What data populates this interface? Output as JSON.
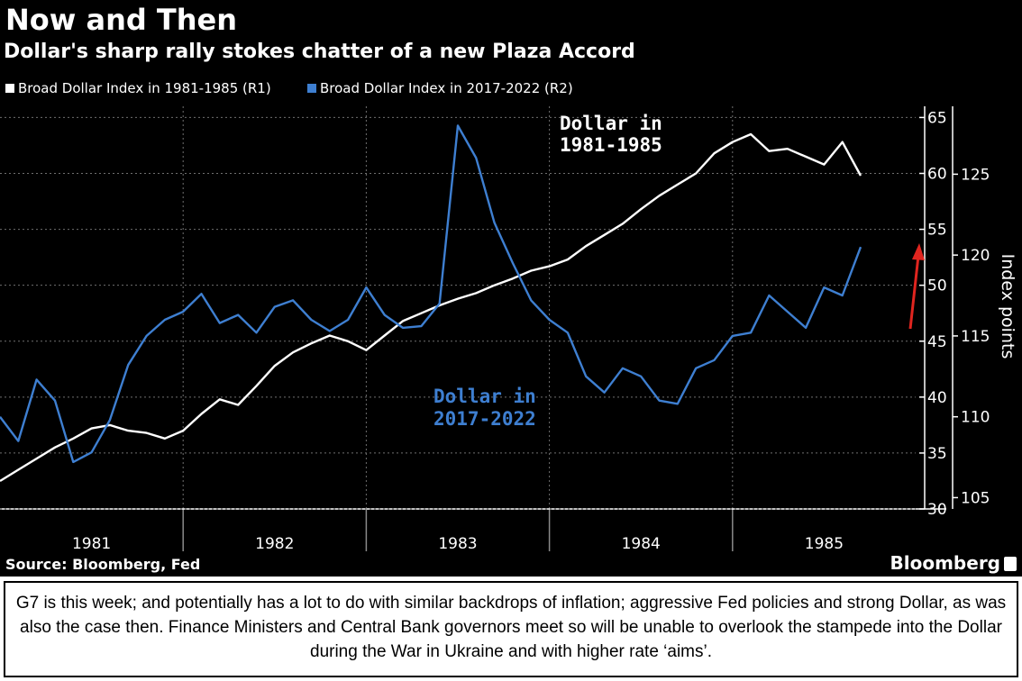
{
  "header": {
    "title": "Now and Then",
    "subtitle": "Dollar's sharp rally stokes chatter of a new Plaza Accord"
  },
  "footer": {
    "source": "Source: Bloomberg, Fed",
    "logo": "Bloomberg"
  },
  "caption": {
    "text": "G7 is this week; and potentially has a lot to do with similar backdrops of inflation; aggressive Fed policies and strong Dollar, as was also the case then. Finance Ministers and Central Bank governors meet so will be unable to overlook the stampede into the Dollar during the War in Ukraine and with higher rate ‘aims’."
  },
  "colors": {
    "background": "#000000",
    "white_series": "#ffffff",
    "blue_series": "#3e7fd1",
    "arrow": "#e0251f",
    "grid": "#6f6f6f"
  },
  "chart_data": {
    "type": "line",
    "title": "Now and Then",
    "subtitle": "Dollar's sharp rally stokes chatter of a new Plaza Accord",
    "legend": [
      {
        "name": "Broad Dollar Index in 1981-1985 (R1)",
        "color": "#ffffff"
      },
      {
        "name": "Broad Dollar Index in 2017-2022 (R2)",
        "color": "#3e7fd1"
      }
    ],
    "legend_position": "top-left",
    "x_categories": [
      "1981",
      "1982",
      "1983",
      "1984",
      "1985"
    ],
    "x_range": [
      1981.0,
      1986.0
    ],
    "ylabel": "Index points",
    "y1": {
      "name": "R1",
      "range": [
        30,
        66
      ],
      "ticks": [
        30,
        35,
        40,
        45,
        50,
        55,
        60,
        65
      ]
    },
    "y2": {
      "name": "R2",
      "range": [
        104.3,
        129.2
      ],
      "ticks": [
        105,
        110,
        115,
        120,
        125
      ]
    },
    "grid": true,
    "series": [
      {
        "name": "Broad Dollar Index in 1981-1985 (R1)",
        "axis": "R1",
        "color": "#ffffff",
        "x": [
          1981.0,
          1981.1,
          1981.2,
          1981.3,
          1981.4,
          1981.5,
          1981.6,
          1981.7,
          1981.8,
          1981.9,
          1982.0,
          1982.1,
          1982.2,
          1982.3,
          1982.4,
          1982.5,
          1982.6,
          1982.7,
          1982.8,
          1982.9,
          1983.0,
          1983.1,
          1983.2,
          1983.3,
          1983.4,
          1983.5,
          1983.6,
          1983.7,
          1983.8,
          1983.9,
          1984.0,
          1984.1,
          1984.2,
          1984.3,
          1984.4,
          1984.5,
          1984.6,
          1984.7,
          1984.8,
          1984.9,
          1985.0,
          1985.1,
          1985.2,
          1985.3,
          1985.4,
          1985.5,
          1985.6,
          1985.7
        ],
        "values": [
          32.5,
          33.5,
          34.5,
          35.5,
          36.3,
          37.2,
          37.5,
          37.0,
          36.8,
          36.3,
          37.0,
          38.5,
          39.8,
          39.3,
          41.0,
          42.8,
          44.0,
          44.8,
          45.5,
          45.0,
          44.2,
          45.5,
          46.8,
          47.5,
          48.2,
          48.8,
          49.3,
          50.0,
          50.6,
          51.3,
          51.7,
          52.3,
          53.5,
          54.5,
          55.5,
          56.8,
          58.0,
          59.0,
          60.0,
          61.8,
          62.8,
          63.5,
          62.0,
          62.2,
          61.5,
          60.8,
          62.8,
          59.8
        ]
      },
      {
        "name": "Broad Dollar Index in 2017-2022 (R2)",
        "axis": "R2",
        "color": "#3e7fd1",
        "x": [
          1981.0,
          1981.1,
          1981.2,
          1981.3,
          1981.4,
          1981.5,
          1981.6,
          1981.7,
          1981.8,
          1981.9,
          1982.0,
          1982.1,
          1982.2,
          1982.3,
          1982.4,
          1982.5,
          1982.6,
          1982.7,
          1982.8,
          1982.9,
          1983.0,
          1983.1,
          1983.2,
          1983.3,
          1983.4,
          1983.5,
          1983.6,
          1983.7,
          1983.8,
          1983.9,
          1984.0,
          1984.1,
          1984.2,
          1984.3,
          1984.4,
          1984.5,
          1984.6,
          1984.7,
          1984.8,
          1984.9,
          1985.0,
          1985.1,
          1985.2,
          1985.3,
          1985.4,
          1985.5,
          1985.6,
          1985.7
        ],
        "values": [
          110.0,
          108.5,
          112.3,
          111.0,
          107.2,
          107.8,
          109.8,
          113.2,
          115.0,
          116.0,
          116.5,
          117.6,
          115.8,
          116.3,
          115.2,
          116.8,
          117.2,
          116.0,
          115.3,
          116.0,
          118.0,
          116.3,
          115.5,
          115.6,
          117.0,
          128.0,
          126.0,
          122.0,
          119.5,
          117.2,
          116.0,
          115.2,
          112.5,
          111.5,
          113.0,
          112.5,
          111.0,
          110.8,
          113.0,
          113.5,
          115.0,
          115.2,
          117.5,
          116.5,
          115.5,
          118.0,
          117.5,
          120.5
        ]
      }
    ],
    "annotations": [
      {
        "text": "Dollar in\n1981-1985",
        "color": "#ffffff"
      },
      {
        "text": "Dollar in\n2017-2022",
        "color": "#3e7fd1"
      }
    ]
  }
}
